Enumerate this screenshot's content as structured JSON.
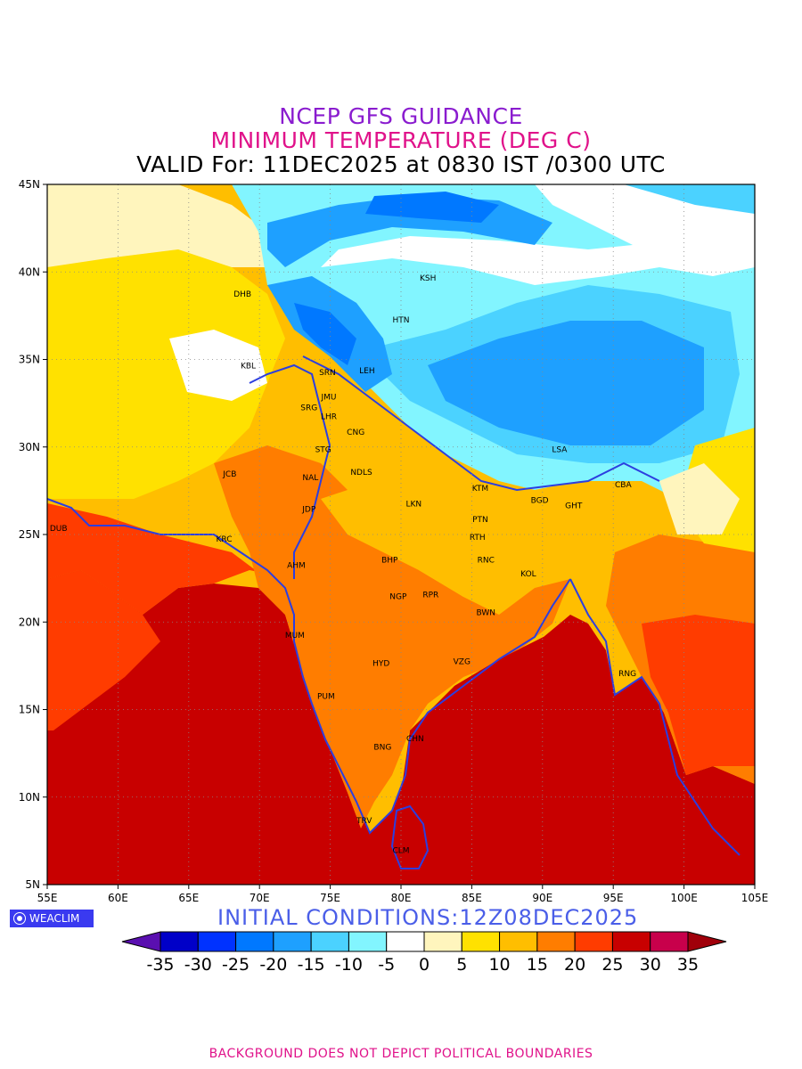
{
  "titles": {
    "line1": "NCEP GFS GUIDANCE",
    "line2": "MINIMUM TEMPERATURE (DEG C)",
    "line3": "VALID For: 11DEC2025 at 0830 IST /0300 UTC"
  },
  "axes": {
    "x_ticks": [
      "55E",
      "60E",
      "65E",
      "70E",
      "75E",
      "80E",
      "85E",
      "90E",
      "95E",
      "100E",
      "105E"
    ],
    "y_ticks": [
      "45N",
      "40N",
      "35N",
      "30N",
      "25N",
      "20N",
      "15N",
      "10N",
      "5N"
    ],
    "lon_range": [
      55,
      105
    ],
    "lat_range": [
      5,
      45
    ],
    "gridlines": "dotted"
  },
  "cities": [
    {
      "code": "KSH",
      "lon": 81.9,
      "lat": 39.5
    },
    {
      "code": "DHB",
      "lon": 68.8,
      "lat": 38.6
    },
    {
      "code": "HTN",
      "lon": 80.0,
      "lat": 37.1
    },
    {
      "code": "KBL",
      "lon": 69.2,
      "lat": 34.5
    },
    {
      "code": "SRN",
      "lon": 74.8,
      "lat": 34.1
    },
    {
      "code": "LEH",
      "lon": 77.6,
      "lat": 34.2
    },
    {
      "code": "JMU",
      "lon": 74.9,
      "lat": 32.7
    },
    {
      "code": "SRG",
      "lon": 73.5,
      "lat": 32.1
    },
    {
      "code": "LHR",
      "lon": 74.9,
      "lat": 31.6
    },
    {
      "code": "CNG",
      "lon": 76.8,
      "lat": 30.7
    },
    {
      "code": "LSA",
      "lon": 91.2,
      "lat": 29.7
    },
    {
      "code": "STG",
      "lon": 74.5,
      "lat": 29.7
    },
    {
      "code": "JCB",
      "lon": 67.9,
      "lat": 28.3
    },
    {
      "code": "NDLS",
      "lon": 77.2,
      "lat": 28.4
    },
    {
      "code": "NAL",
      "lon": 73.6,
      "lat": 28.1
    },
    {
      "code": "KTM",
      "lon": 85.6,
      "lat": 27.5
    },
    {
      "code": "CBA",
      "lon": 95.7,
      "lat": 27.7
    },
    {
      "code": "BGD",
      "lon": 89.8,
      "lat": 26.8
    },
    {
      "code": "GHT",
      "lon": 92.2,
      "lat": 26.5
    },
    {
      "code": "LKN",
      "lon": 80.9,
      "lat": 26.6
    },
    {
      "code": "JDP",
      "lon": 73.5,
      "lat": 26.3
    },
    {
      "code": "DUB",
      "lon": 55.8,
      "lat": 25.2
    },
    {
      "code": "PTN",
      "lon": 85.6,
      "lat": 25.7
    },
    {
      "code": "RTH",
      "lon": 85.4,
      "lat": 24.7
    },
    {
      "code": "KRC",
      "lon": 67.5,
      "lat": 24.6
    },
    {
      "code": "RNC",
      "lon": 86.0,
      "lat": 23.4
    },
    {
      "code": "BHP",
      "lon": 79.2,
      "lat": 23.4
    },
    {
      "code": "AHM",
      "lon": 72.6,
      "lat": 23.1
    },
    {
      "code": "KOL",
      "lon": 89.0,
      "lat": 22.6
    },
    {
      "code": "NGP",
      "lon": 79.8,
      "lat": 21.3
    },
    {
      "code": "RPR",
      "lon": 82.1,
      "lat": 21.4
    },
    {
      "code": "BWN",
      "lon": 86.0,
      "lat": 20.4
    },
    {
      "code": "MUM",
      "lon": 72.5,
      "lat": 19.1
    },
    {
      "code": "RNG",
      "lon": 96.0,
      "lat": 16.9
    },
    {
      "code": "HYD",
      "lon": 78.6,
      "lat": 17.5
    },
    {
      "code": "VZG",
      "lon": 84.3,
      "lat": 17.6
    },
    {
      "code": "PUM",
      "lon": 74.7,
      "lat": 15.6
    },
    {
      "code": "CHN",
      "lon": 81.0,
      "lat": 13.2
    },
    {
      "code": "BNG",
      "lon": 78.7,
      "lat": 12.7
    },
    {
      "code": "TRV",
      "lon": 77.4,
      "lat": 8.5
    },
    {
      "code": "CLM",
      "lon": 80.0,
      "lat": 6.8
    }
  ],
  "colorbar": {
    "levels": [
      "-35",
      "-30",
      "-25",
      "-20",
      "-15",
      "-10",
      "-5",
      "0",
      "5",
      "10",
      "15",
      "20",
      "25",
      "30",
      "35"
    ],
    "colors": [
      "#5a0fb0",
      "#0000c8",
      "#0032ff",
      "#0078ff",
      "#1ea0ff",
      "#4bd2ff",
      "#82f5ff",
      "#ffffff",
      "#fff5bd",
      "#ffe100",
      "#ffbe00",
      "#ff7d00",
      "#ff3c00",
      "#c80000",
      "#c8004b",
      "#a0000a"
    ]
  },
  "colors": {
    "land_base": "#ffbe00",
    "ocean": "#c80000",
    "outlines": "#2c3ee0"
  },
  "brand": "WEACLIM",
  "initial_conditions": "INITIAL CONDITIONS:12Z08DEC2025",
  "footer": "BACKGROUND DOES NOT DEPICT POLITICAL BOUNDARIES"
}
